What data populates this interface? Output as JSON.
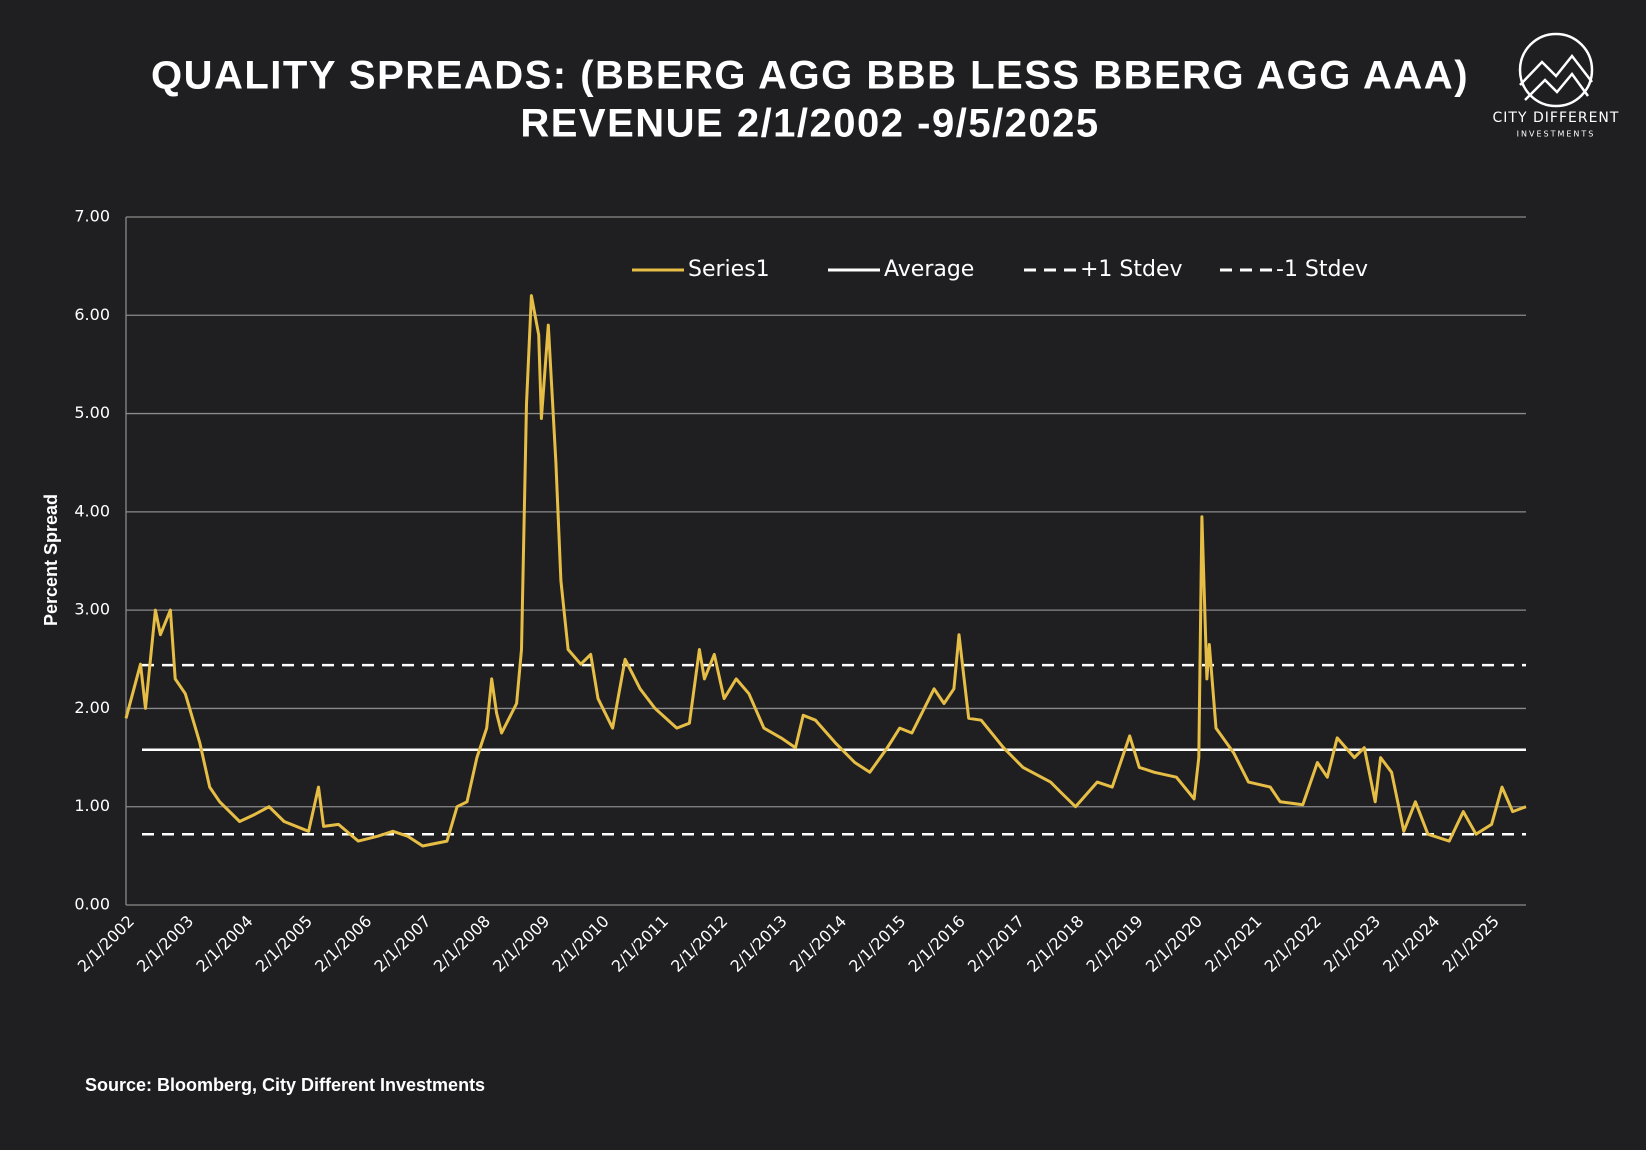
{
  "chart_data": {
    "type": "line",
    "title": "QUALITY SPREADS: (BBERG AGG BBB LESS BBERG AGG AAA)",
    "subtitle": "REVENUE 2/1/2002 -9/5/2025",
    "y_label": "Percent Spread",
    "source": "Source: Bloomberg, City Different Investments",
    "logo": {
      "name": "CITY DIFFERENT",
      "sub": "INVESTMENTS"
    },
    "legend": "top",
    "grid": true,
    "ylim": [
      0,
      7
    ],
    "yticks": [
      {
        "value": 0,
        "label": "0.00"
      },
      {
        "value": 1,
        "label": "1.00"
      },
      {
        "value": 2,
        "label": "2.00"
      },
      {
        "value": 3,
        "label": "3.00"
      },
      {
        "value": 4,
        "label": "4.00"
      },
      {
        "value": 5,
        "label": "5.00"
      },
      {
        "value": 6,
        "label": "6.00"
      },
      {
        "value": 7,
        "label": "7.00"
      }
    ],
    "xlim": [
      "2/1/2002",
      "9/5/2025"
    ],
    "xticks": [
      "2/1/2002",
      "2/1/2003",
      "2/1/2004",
      "2/1/2005",
      "2/1/2006",
      "2/1/2007",
      "2/1/2008",
      "2/1/2009",
      "2/1/2010",
      "2/1/2011",
      "2/1/2012",
      "2/1/2013",
      "2/1/2014",
      "2/1/2015",
      "2/1/2016",
      "2/1/2017",
      "2/1/2018",
      "2/1/2019",
      "2/1/2020",
      "2/1/2021",
      "2/1/2022",
      "2/1/2023",
      "2/1/2024",
      "2/1/2025"
    ],
    "x": [
      "2/1/2002",
      "5/1/2002",
      "6/1/2002",
      "8/1/2002",
      "9/1/2002",
      "11/1/2002",
      "12/1/2002",
      "2/1/2003",
      "5/1/2003",
      "7/1/2003",
      "9/1/2003",
      "1/1/2004",
      "4/1/2004",
      "7/1/2004",
      "10/1/2004",
      "3/1/2005",
      "5/1/2005",
      "6/1/2005",
      "9/1/2005",
      "1/1/2006",
      "5/1/2006",
      "8/1/2006",
      "11/1/2006",
      "2/1/2007",
      "7/1/2007",
      "9/1/2007",
      "11/1/2007",
      "1/1/2008",
      "3/1/2008",
      "4/1/2008",
      "5/1/2008",
      "6/1/2008",
      "9/1/2008",
      "10/1/2008",
      "11/1/2008",
      "12/1/2008",
      "1/15/2009",
      "2/1/2009",
      "3/15/2009",
      "5/1/2009",
      "6/1/2009",
      "7/15/2009",
      "10/1/2009",
      "12/1/2009",
      "1/15/2010",
      "4/15/2010",
      "7/1/2010",
      "10/1/2010",
      "1/1/2011",
      "5/15/2011",
      "8/1/2011",
      "10/1/2011",
      "11/1/2011",
      "1/1/2012",
      "3/1/2012",
      "5/15/2012",
      "8/1/2012",
      "11/1/2012",
      "2/15/2013",
      "5/15/2013",
      "7/1/2013",
      "9/15/2013",
      "1/15/2014",
      "5/15/2014",
      "8/15/2014",
      "12/1/2014",
      "2/15/2015",
      "5/1/2015",
      "9/15/2015",
      "11/15/2015",
      "1/15/2016",
      "2/15/2016",
      "4/15/2016",
      "7/1/2016",
      "11/15/2016",
      "3/15/2017",
      "9/1/2017",
      "11/1/2017",
      "2/1/2018",
      "6/15/2018",
      "9/15/2018",
      "1/1/2019",
      "3/1/2019",
      "6/1/2019",
      "10/15/2019",
      "2/1/2020",
      "3/1/2020",
      "3/20/2020",
      "4/20/2020",
      "5/5/2020",
      "6/15/2020",
      "10/1/2020",
      "1/1/2021",
      "5/15/2021",
      "7/15/2021",
      "12/1/2021",
      "3/1/2022",
      "5/1/2022",
      "7/1/2022",
      "10/15/2022",
      "12/15/2022",
      "2/20/2023",
      "3/25/2023",
      "6/1/2023",
      "8/15/2023",
      "10/25/2023",
      "1/10/2024",
      "5/20/2024",
      "8/15/2024",
      "11/1/2024",
      "2/5/2025",
      "4/10/2025",
      "6/15/2025",
      "9/5/2025"
    ],
    "series": [
      {
        "name": "Series1",
        "color": "#e6bd45",
        "values": [
          1.9,
          2.45,
          2.0,
          3.0,
          2.75,
          3.0,
          2.3,
          2.15,
          1.65,
          1.2,
          1.05,
          0.85,
          0.92,
          1.0,
          0.85,
          0.75,
          1.2,
          0.8,
          0.82,
          0.65,
          0.7,
          0.75,
          0.7,
          0.6,
          0.65,
          1.0,
          1.05,
          1.5,
          1.8,
          2.3,
          1.95,
          1.75,
          2.05,
          2.6,
          5.1,
          6.2,
          5.8,
          4.95,
          5.9,
          4.5,
          3.3,
          2.6,
          2.45,
          2.55,
          2.1,
          1.8,
          2.5,
          2.2,
          2.0,
          1.8,
          1.85,
          2.6,
          2.3,
          2.55,
          2.1,
          2.3,
          2.15,
          1.8,
          1.7,
          1.6,
          1.93,
          1.88,
          1.65,
          1.45,
          1.35,
          1.6,
          1.8,
          1.75,
          2.2,
          2.05,
          2.2,
          2.75,
          1.9,
          1.88,
          1.6,
          1.4,
          1.25,
          1.15,
          1.0,
          1.25,
          1.2,
          1.72,
          1.4,
          1.35,
          1.3,
          1.08,
          1.5,
          3.95,
          2.3,
          2.65,
          1.8,
          1.55,
          1.25,
          1.2,
          1.05,
          1.02,
          1.45,
          1.3,
          1.7,
          1.5,
          1.6,
          1.05,
          1.5,
          1.35,
          0.75,
          1.05,
          0.72,
          0.65,
          0.95,
          0.72,
          0.82,
          1.2,
          0.95,
          1.0
        ]
      }
    ],
    "reference_lines": [
      {
        "name": "Average",
        "value": 1.58,
        "color": "#ffffff",
        "dashed": false
      },
      {
        "name": "+1 Stdev",
        "value": 2.44,
        "color": "#ffffff",
        "dashed": true
      },
      {
        "name": "-1 Stdev",
        "value": 0.72,
        "color": "#ffffff",
        "dashed": true
      }
    ]
  }
}
